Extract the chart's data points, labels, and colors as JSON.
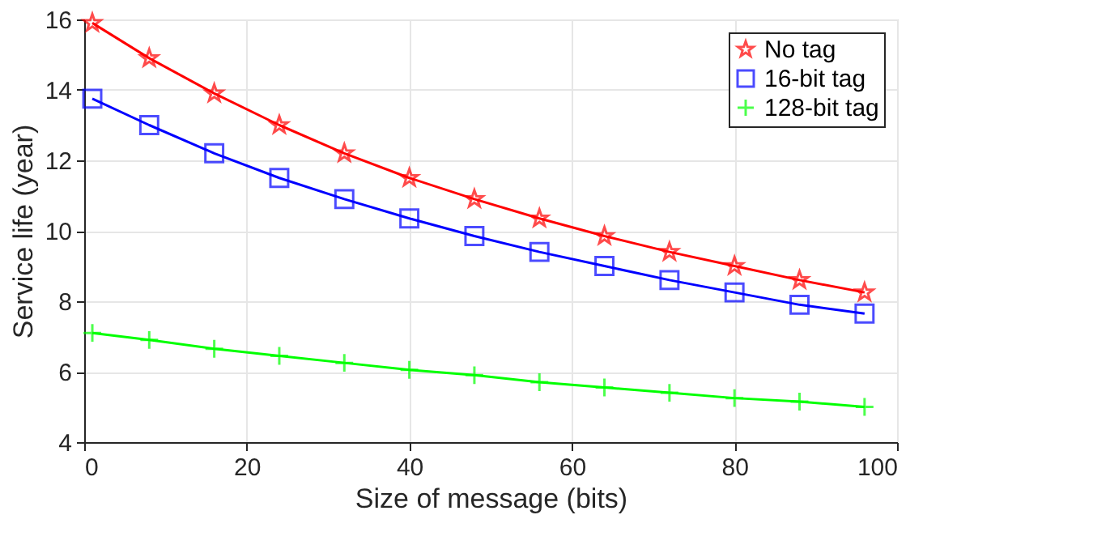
{
  "chart_data": {
    "type": "line",
    "xlabel": "Size of message (bits)",
    "ylabel": "Service life (year)",
    "x": [
      1,
      8,
      16,
      24,
      32,
      40,
      48,
      56,
      64,
      72,
      80,
      88,
      96
    ],
    "series": [
      {
        "name": "No tag",
        "color": "#ff0000",
        "marker": "star",
        "values": [
          15.9,
          14.9,
          13.9,
          13.0,
          12.2,
          11.5,
          10.9,
          10.35,
          9.85,
          9.4,
          9.0,
          8.6,
          8.25
        ]
      },
      {
        "name": "16-bit tag",
        "color": "#0000ff",
        "marker": "square",
        "values": [
          13.75,
          13.0,
          12.2,
          11.5,
          10.9,
          10.35,
          9.85,
          9.4,
          9.0,
          8.6,
          8.25,
          7.9,
          7.65
        ]
      },
      {
        "name": "128-bit tag",
        "color": "#00ff00",
        "marker": "cross",
        "values": [
          7.1,
          6.9,
          6.65,
          6.45,
          6.25,
          6.05,
          5.9,
          5.7,
          5.55,
          5.4,
          5.25,
          5.15,
          5.0
        ]
      }
    ],
    "xlim": [
      0,
      100
    ],
    "xticks": [
      0,
      20,
      40,
      60,
      80,
      100
    ],
    "ylim": [
      4,
      16
    ],
    "yticks": [
      4,
      6,
      8,
      10,
      12,
      14,
      16
    ],
    "grid": true,
    "legend": "top right",
    "line_style": "solid"
  }
}
